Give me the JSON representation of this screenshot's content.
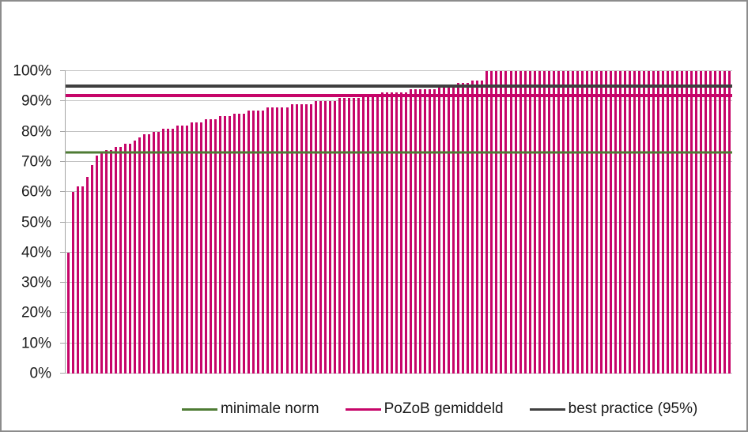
{
  "chart_data": {
    "type": "bar",
    "title": "",
    "xlabel": "",
    "ylabel": "",
    "ylim": [
      0,
      100
    ],
    "grid": true,
    "legend_position": "bottom",
    "y_tick_labels": [
      "0%",
      "10%",
      "20%",
      "30%",
      "40%",
      "50%",
      "60%",
      "70%",
      "80%",
      "90%",
      "100%"
    ],
    "bar_color": "#c60569",
    "values": [
      40,
      60,
      62,
      62,
      65,
      69,
      72,
      73,
      74,
      74,
      75,
      75,
      76,
      76,
      77,
      78,
      79,
      79,
      80,
      80,
      81,
      81,
      81,
      82,
      82,
      82,
      83,
      83,
      83,
      84,
      84,
      84,
      85,
      85,
      85,
      86,
      86,
      86,
      87,
      87,
      87,
      87,
      88,
      88,
      88,
      88,
      88,
      89,
      89,
      89,
      89,
      89,
      90,
      90,
      90,
      90,
      90,
      91,
      91,
      91,
      91,
      91,
      92,
      92,
      92,
      92,
      93,
      93,
      93,
      93,
      93,
      93,
      94,
      94,
      94,
      94,
      94,
      94,
      95,
      95,
      95,
      95,
      96,
      96,
      96,
      97,
      97,
      97,
      100,
      100,
      100,
      100,
      100,
      100,
      100,
      100,
      100,
      100,
      100,
      100,
      100,
      100,
      100,
      100,
      100,
      100,
      100,
      100,
      100,
      100,
      100,
      100,
      100,
      100,
      100,
      100,
      100,
      100,
      100,
      100,
      100,
      100,
      100,
      100,
      100,
      100,
      100,
      100,
      100,
      100,
      100,
      100,
      100,
      100,
      100,
      100,
      100,
      100,
      100,
      100
    ],
    "reference_lines": [
      {
        "label": "minimale norm",
        "value": 73,
        "color": "#4e7b34",
        "thickness": 3
      },
      {
        "label": "PoZoB gemiddeld",
        "value": 92,
        "color": "#c60569",
        "thickness": 4
      },
      {
        "label": "best practice (95%)",
        "value": 95,
        "color": "#3f3f3f",
        "thickness": 4
      }
    ]
  }
}
